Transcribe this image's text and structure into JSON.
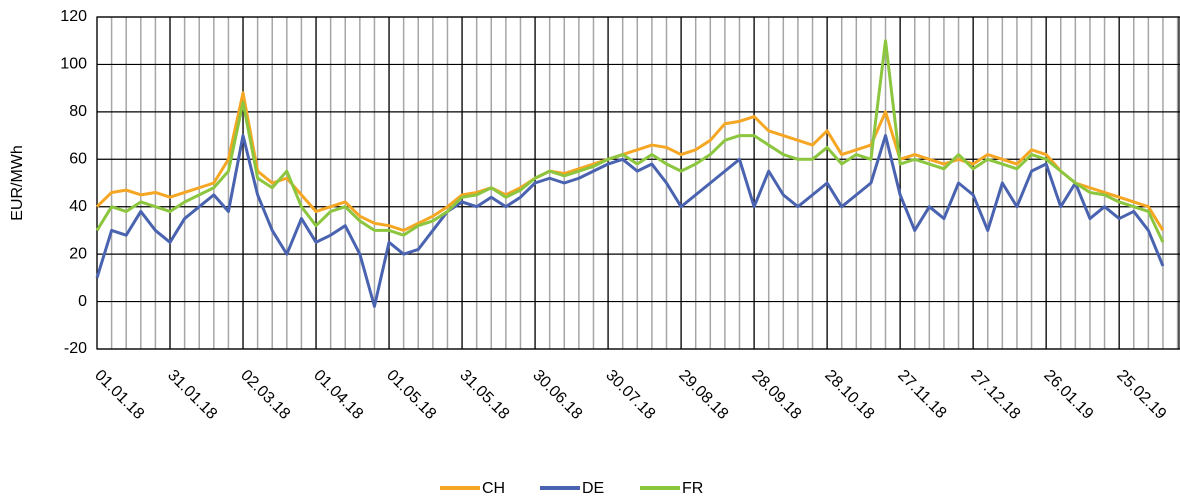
{
  "chart_data": {
    "type": "line",
    "y_label": "EUR/MWh",
    "x": [
      "01.01.18",
      "07.01.18",
      "13.01.18",
      "19.01.18",
      "25.01.18",
      "31.01.18",
      "06.02.18",
      "12.02.18",
      "18.02.18",
      "24.02.18",
      "02.03.18",
      "08.03.18",
      "14.03.18",
      "20.03.18",
      "26.03.18",
      "01.04.18",
      "07.04.18",
      "13.04.18",
      "19.04.18",
      "25.04.18",
      "01.05.18",
      "07.05.18",
      "13.05.18",
      "19.05.18",
      "25.05.18",
      "31.05.18",
      "06.06.18",
      "12.06.18",
      "18.06.18",
      "24.06.18",
      "30.06.18",
      "06.07.18",
      "12.07.18",
      "18.07.18",
      "24.07.18",
      "30.07.18",
      "05.08.18",
      "11.08.18",
      "17.08.18",
      "23.08.18",
      "29.08.18",
      "04.09.18",
      "10.09.18",
      "16.09.18",
      "22.09.18",
      "28.09.18",
      "04.10.18",
      "10.10.18",
      "16.10.18",
      "22.10.18",
      "28.10.18",
      "03.11.18",
      "09.11.18",
      "15.11.18",
      "21.11.18",
      "27.11.18",
      "03.12.18",
      "09.12.18",
      "15.12.18",
      "21.12.18",
      "27.12.18",
      "02.01.19",
      "08.01.19",
      "14.01.19",
      "20.01.19",
      "26.01.19",
      "01.02.19",
      "07.02.19",
      "13.02.19",
      "19.02.19",
      "25.02.19",
      "03.03.19",
      "09.03.19",
      "15.03.19"
    ],
    "series": [
      {
        "name": "CH",
        "color": "#f5a623",
        "values": [
          40,
          46,
          47,
          45,
          46,
          44,
          46,
          48,
          50,
          60,
          88,
          55,
          50,
          52,
          45,
          38,
          40,
          42,
          36,
          33,
          32,
          30,
          33,
          36,
          40,
          45,
          46,
          48,
          45,
          48,
          52,
          55,
          54,
          56,
          58,
          60,
          62,
          64,
          66,
          65,
          62,
          64,
          68,
          75,
          76,
          78,
          72,
          70,
          68,
          66,
          72,
          62,
          64,
          66,
          80,
          60,
          62,
          60,
          58,
          60,
          58,
          62,
          60,
          58,
          64,
          62,
          55,
          50,
          48,
          46,
          44,
          42,
          40,
          30
        ]
      },
      {
        "name": "DE",
        "color": "#4a63b0",
        "values": [
          10,
          30,
          28,
          38,
          30,
          25,
          35,
          40,
          45,
          38,
          70,
          45,
          30,
          20,
          35,
          25,
          28,
          32,
          20,
          -2,
          25,
          20,
          22,
          30,
          38,
          42,
          40,
          44,
          40,
          44,
          50,
          52,
          50,
          52,
          55,
          58,
          60,
          55,
          58,
          50,
          40,
          45,
          50,
          55,
          60,
          40,
          55,
          45,
          40,
          45,
          50,
          40,
          45,
          50,
          70,
          45,
          30,
          40,
          35,
          50,
          45,
          30,
          50,
          40,
          55,
          58,
          40,
          50,
          35,
          40,
          35,
          38,
          30,
          15
        ]
      },
      {
        "name": "FR",
        "color": "#8cc63f",
        "values": [
          30,
          40,
          38,
          42,
          40,
          38,
          42,
          45,
          48,
          55,
          84,
          52,
          48,
          55,
          40,
          32,
          38,
          40,
          34,
          30,
          30,
          28,
          32,
          34,
          38,
          44,
          45,
          48,
          44,
          47,
          52,
          55,
          53,
          55,
          57,
          60,
          62,
          58,
          62,
          58,
          55,
          58,
          62,
          68,
          70,
          70,
          66,
          62,
          60,
          60,
          65,
          58,
          62,
          60,
          110,
          58,
          60,
          58,
          56,
          62,
          56,
          60,
          58,
          56,
          62,
          60,
          55,
          50,
          46,
          45,
          42,
          40,
          38,
          25
        ]
      }
    ],
    "xlim": [
      "01.01.18",
      "22.03.19"
    ],
    "xticks": [
      "01.01.18",
      "31.01.18",
      "02.03.18",
      "01.04.18",
      "01.05.18",
      "31.05.18",
      "30.06.18",
      "30.07.18",
      "29.08.18",
      "28.09.18",
      "28.10.18",
      "27.11.18",
      "27.12.18",
      "26.01.19",
      "25.02.19"
    ],
    "ylim": [
      -20,
      120
    ],
    "yticks": [
      -20,
      0,
      20,
      40,
      60,
      80,
      100,
      120
    ],
    "grid": true
  }
}
